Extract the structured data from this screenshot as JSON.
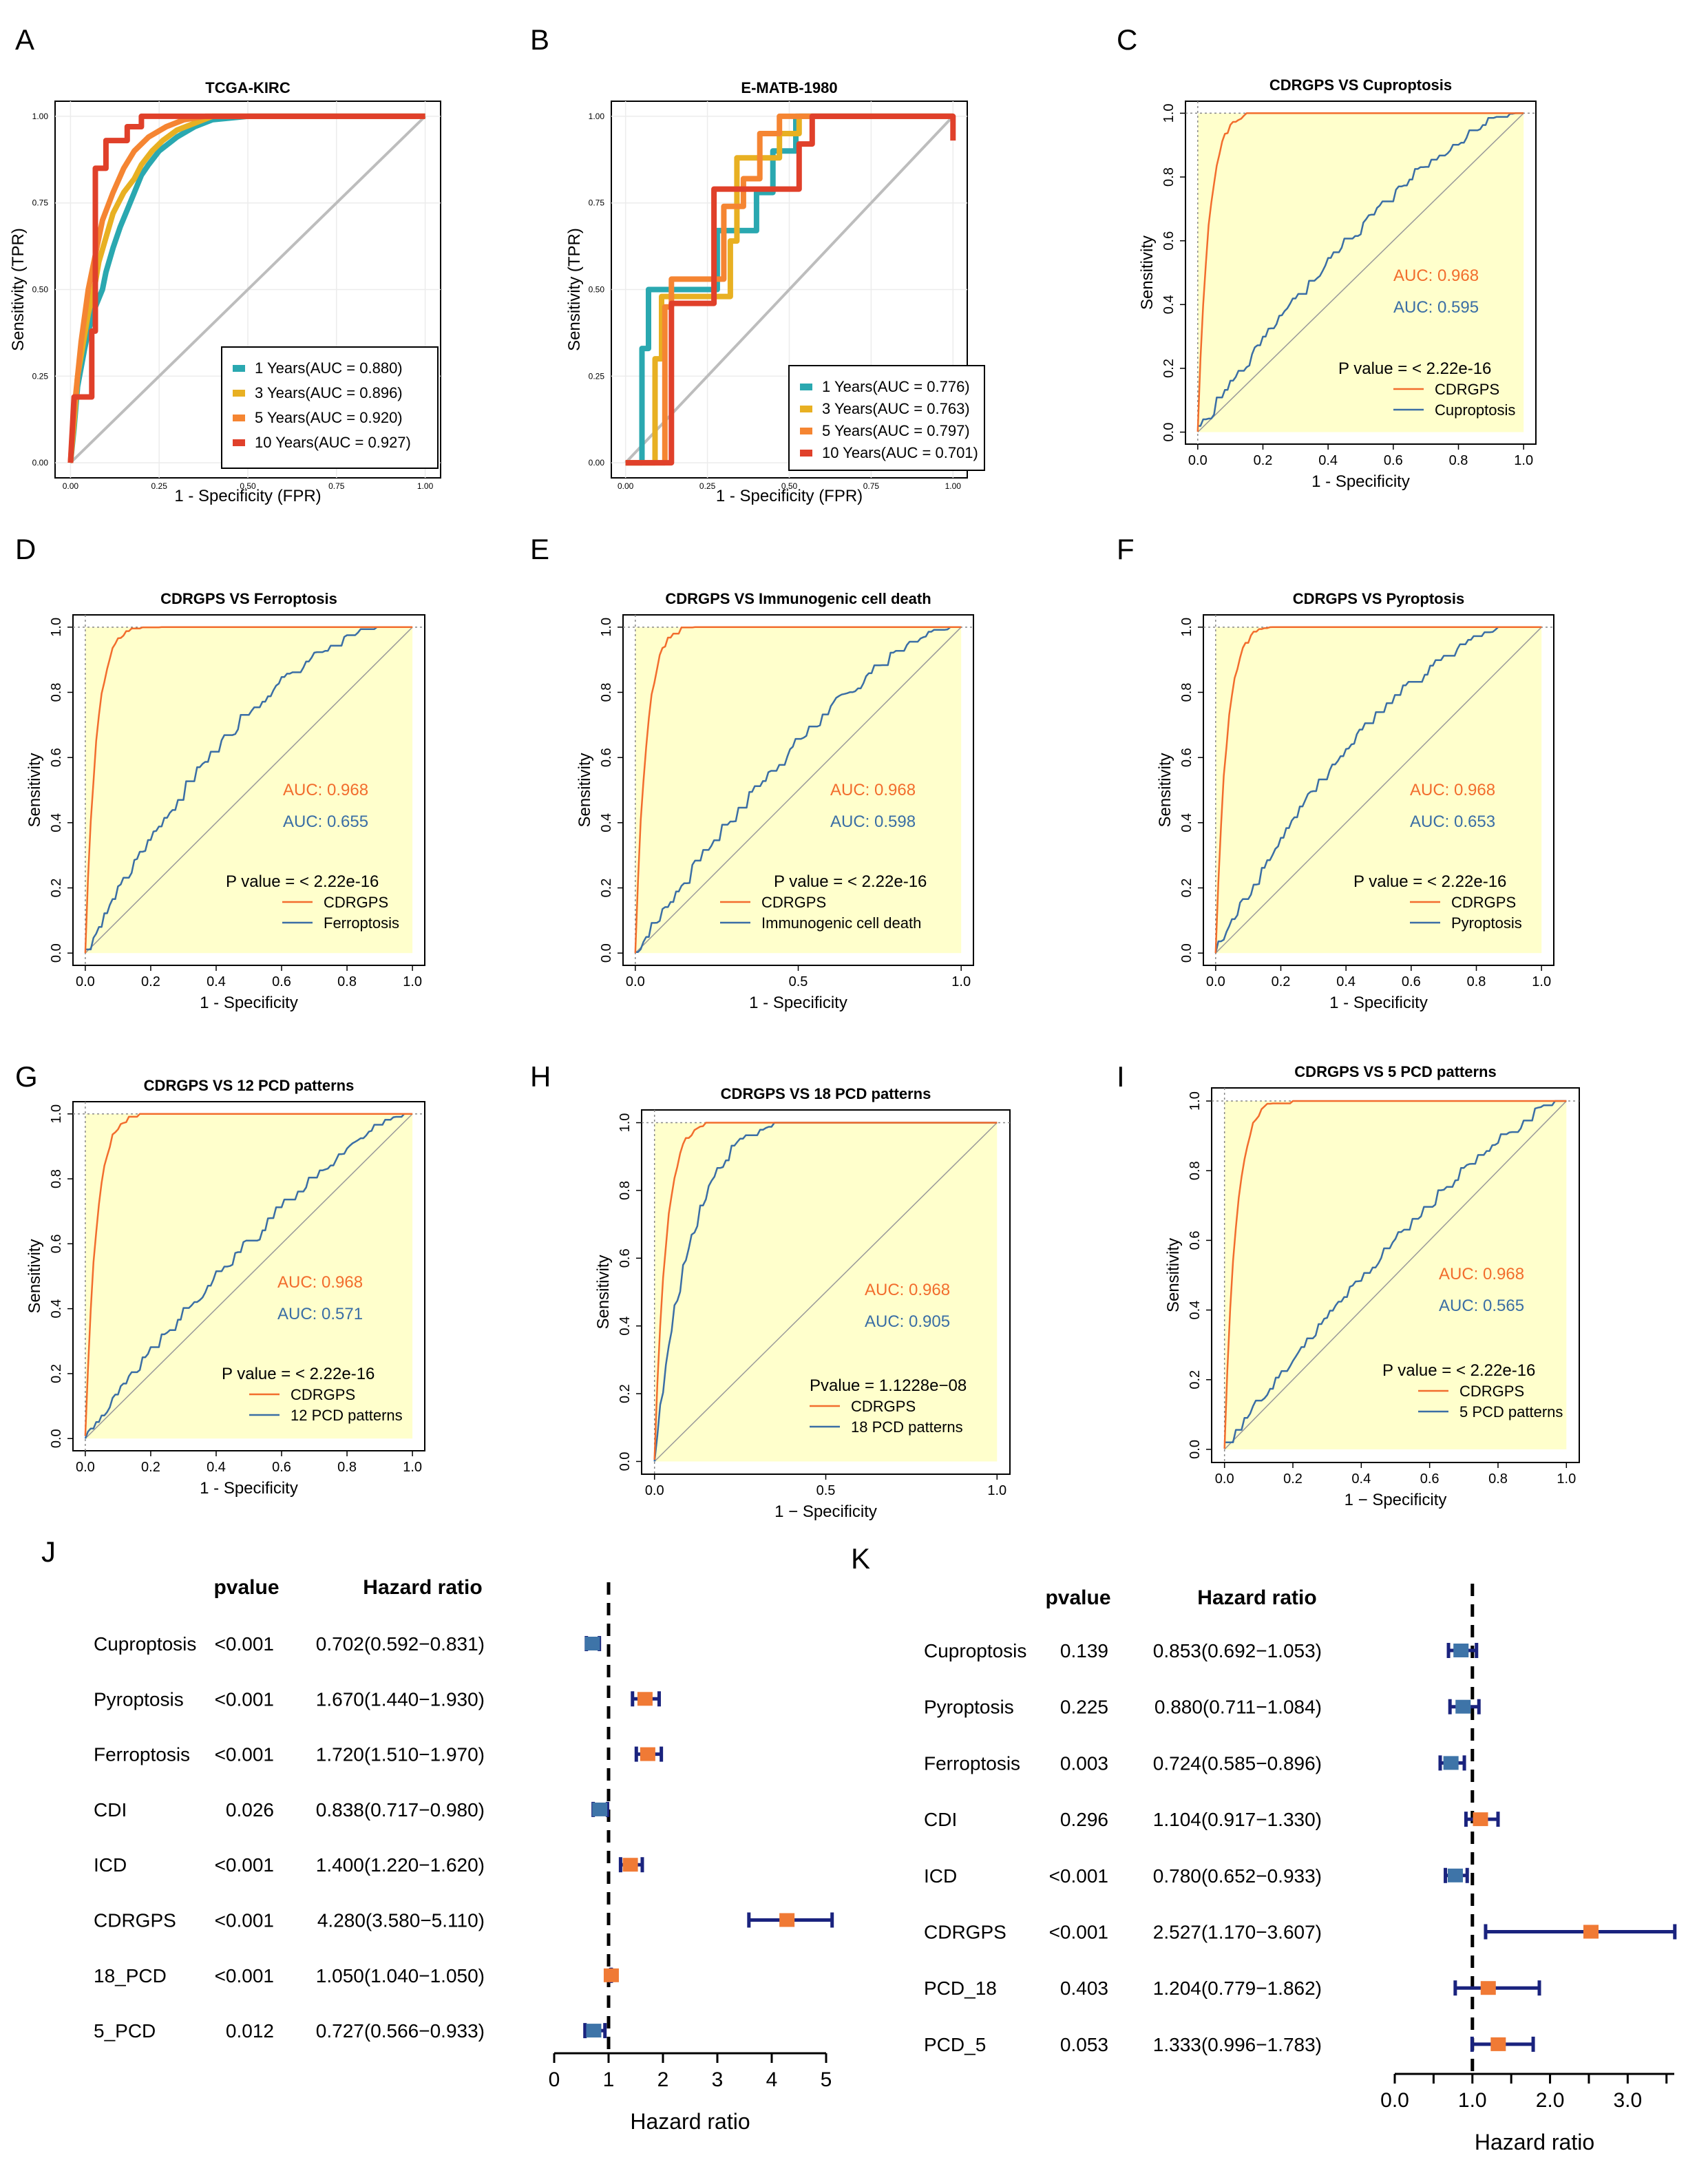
{
  "panel_letters": [
    "A",
    "B",
    "C",
    "D",
    "E",
    "F",
    "G",
    "H",
    "I",
    "J",
    "K"
  ],
  "colors": {
    "y1": "#2AA8B0",
    "y3": "#E8B022",
    "y5": "#F58532",
    "y10": "#E0402A",
    "orange": "#F26D2D",
    "blue": "#3A6EA5",
    "fill": "#FFFFCC",
    "forest_blue": "#3E74A8",
    "forest_orange": "#F07A35",
    "whisker": "#1A237E"
  },
  "chart_data": [
    {
      "panel": "A",
      "type": "line",
      "title": "TCGA-KIRC",
      "xlabel": "1 - Specificity (FPR)",
      "ylabel": "Sensitivity (TPR)",
      "xlim": [
        0,
        1
      ],
      "ylim": [
        0,
        1
      ],
      "xticks": [
        "0.00",
        "0.25",
        "0.50",
        "0.75",
        "1.00"
      ],
      "yticks": [
        "0.00",
        "0.25",
        "0.50",
        "0.75",
        "1.00"
      ],
      "legend_position": "bottom-right",
      "series": [
        {
          "name": "1 Years(AUC = 0.880)",
          "color": "#2AA8B0",
          "x": [
            0,
            0.01,
            0.02,
            0.04,
            0.05,
            0.07,
            0.09,
            0.1,
            0.12,
            0.14,
            0.16,
            0.18,
            0.2,
            0.22,
            0.25,
            0.3,
            0.35,
            0.4,
            0.5,
            1
          ],
          "y": [
            0,
            0.1,
            0.22,
            0.33,
            0.38,
            0.45,
            0.5,
            0.55,
            0.62,
            0.68,
            0.73,
            0.78,
            0.83,
            0.86,
            0.9,
            0.94,
            0.97,
            0.99,
            1,
            1
          ]
        },
        {
          "name": "3 Years(AUC = 0.896)",
          "color": "#E8B022",
          "x": [
            0,
            0.01,
            0.02,
            0.04,
            0.05,
            0.07,
            0.08,
            0.1,
            0.12,
            0.15,
            0.18,
            0.2,
            0.23,
            0.26,
            0.3,
            0.35,
            0.4,
            1
          ],
          "y": [
            0,
            0.12,
            0.25,
            0.37,
            0.43,
            0.52,
            0.58,
            0.65,
            0.72,
            0.78,
            0.82,
            0.86,
            0.9,
            0.93,
            0.96,
            0.98,
            1,
            1
          ]
        },
        {
          "name": "5 Years(AUC = 0.920)",
          "color": "#F58532",
          "x": [
            0,
            0.01,
            0.03,
            0.05,
            0.07,
            0.09,
            0.12,
            0.15,
            0.18,
            0.22,
            0.27,
            0.32,
            0.38,
            1
          ],
          "y": [
            0,
            0.15,
            0.35,
            0.5,
            0.6,
            0.7,
            0.78,
            0.85,
            0.9,
            0.94,
            0.97,
            0.99,
            1,
            1
          ]
        },
        {
          "name": "10 Years(AUC = 0.927)",
          "color": "#E0402A",
          "x": [
            0,
            0.01,
            0.06,
            0.06,
            0.07,
            0.07,
            0.1,
            0.1,
            0.16,
            0.16,
            0.2,
            0.2,
            0.35,
            0.35,
            1
          ],
          "y": [
            0,
            0.19,
            0.19,
            0.38,
            0.38,
            0.85,
            0.85,
            0.93,
            0.93,
            0.97,
            0.97,
            1,
            1,
            1,
            1
          ]
        }
      ]
    },
    {
      "panel": "B",
      "type": "line",
      "title": "E-MATB-1980",
      "xlabel": "1 - Specificity (FPR)",
      "ylabel": "Sensitivity (TPR)",
      "xlim": [
        0,
        1
      ],
      "ylim": [
        0,
        1
      ],
      "xticks": [
        "0.00",
        "0.25",
        "0.50",
        "0.75",
        "1.00"
      ],
      "yticks": [
        "0.00",
        "0.25",
        "0.50",
        "0.75",
        "1.00"
      ],
      "legend_position": "bottom-right",
      "series": [
        {
          "name": "1 Years(AUC = 0.776)",
          "color": "#2AA8B0",
          "x": [
            0,
            0.05,
            0.05,
            0.07,
            0.07,
            0.28,
            0.28,
            0.4,
            0.4,
            0.45,
            0.45,
            0.52,
            0.52,
            1
          ],
          "y": [
            0,
            0,
            0.33,
            0.33,
            0.5,
            0.5,
            0.67,
            0.67,
            0.78,
            0.78,
            0.9,
            0.9,
            1,
            1
          ]
        },
        {
          "name": "3 Years(AUC = 0.763)",
          "color": "#E8B022",
          "x": [
            0,
            0.09,
            0.09,
            0.11,
            0.11,
            0.32,
            0.32,
            0.34,
            0.34,
            0.47,
            0.47,
            0.53,
            0.53,
            1
          ],
          "y": [
            0,
            0,
            0.3,
            0.3,
            0.48,
            0.48,
            0.64,
            0.64,
            0.88,
            0.88,
            0.95,
            0.95,
            1,
            1
          ]
        },
        {
          "name": "5 Years(AUC = 0.797)",
          "color": "#F58532",
          "x": [
            0,
            0.12,
            0.12,
            0.14,
            0.14,
            0.3,
            0.3,
            0.36,
            0.36,
            0.41,
            0.41,
            0.47,
            0.47,
            1
          ],
          "y": [
            0,
            0,
            0.45,
            0.45,
            0.53,
            0.53,
            0.74,
            0.74,
            0.82,
            0.82,
            0.95,
            0.95,
            1,
            1
          ]
        },
        {
          "name": "10 Years(AUC = 0.701)",
          "color": "#E0402A",
          "x": [
            0,
            0.14,
            0.14,
            0.27,
            0.27,
            0.53,
            0.53,
            0.57,
            0.57,
            1,
            1
          ],
          "y": [
            0,
            0,
            0.46,
            0.46,
            0.79,
            0.79,
            0.92,
            0.92,
            1,
            1,
            0.93
          ]
        }
      ]
    },
    {
      "panel": "C",
      "type": "line",
      "title": "CDRGPS VS Cuproptosis",
      "xlabel": "1 - Specificity",
      "ylabel": "Sensitivity",
      "xticks": [
        "0.0",
        "0.2",
        "0.4",
        "0.6",
        "0.8",
        "1.0"
      ],
      "yticks": [
        "0.0",
        "0.2",
        "0.4",
        "0.6",
        "0.8",
        "1.0"
      ],
      "auc_labels": [
        "AUC: 0.968",
        "AUC: 0.595"
      ],
      "pvalue": "P value = < 2.22e-16",
      "series": [
        {
          "name": "CDRGPS",
          "auc": 0.968
        },
        {
          "name": "Cuproptosis",
          "auc": 0.595
        }
      ]
    },
    {
      "panel": "D",
      "type": "line",
      "title": "CDRGPS VS Ferroptosis",
      "xlabel": "1 - Specificity",
      "ylabel": "Sensitivity",
      "xticks": [
        "0.0",
        "0.2",
        "0.4",
        "0.6",
        "0.8",
        "1.0"
      ],
      "yticks": [
        "0.0",
        "0.2",
        "0.4",
        "0.6",
        "0.8",
        "1.0"
      ],
      "auc_labels": [
        "AUC: 0.968",
        "AUC: 0.655"
      ],
      "pvalue": "P value = < 2.22e-16",
      "series": [
        {
          "name": "CDRGPS",
          "auc": 0.968
        },
        {
          "name": "Ferroptosis",
          "auc": 0.655
        }
      ]
    },
    {
      "panel": "E",
      "type": "line",
      "title": "CDRGPS VS Immunogenic cell death",
      "xlabel": "1 - Specificity",
      "ylabel": "Sensitivity",
      "xticks": [
        "0.0",
        "0.5",
        "1.0"
      ],
      "yticks": [
        "0.0",
        "0.2",
        "0.4",
        "0.6",
        "0.8",
        "1.0"
      ],
      "auc_labels": [
        "AUC: 0.968",
        "AUC: 0.598"
      ],
      "pvalue": "P value = < 2.22e-16",
      "series": [
        {
          "name": "CDRGPS",
          "auc": 0.968
        },
        {
          "name": "Immunogenic cell death",
          "auc": 0.598
        }
      ]
    },
    {
      "panel": "F",
      "type": "line",
      "title": "CDRGPS VS Pyroptosis",
      "xlabel": "1 - Specificity",
      "ylabel": "Sensitivity",
      "xticks": [
        "0.0",
        "0.2",
        "0.4",
        "0.6",
        "0.8",
        "1.0"
      ],
      "yticks": [
        "0.0",
        "0.2",
        "0.4",
        "0.6",
        "0.8",
        "1.0"
      ],
      "auc_labels": [
        "AUC: 0.968",
        "AUC: 0.653"
      ],
      "pvalue": "P value = < 2.22e-16",
      "series": [
        {
          "name": "CDRGPS",
          "auc": 0.968
        },
        {
          "name": "Pyroptosis",
          "auc": 0.653
        }
      ]
    },
    {
      "panel": "G",
      "type": "line",
      "title": "CDRGPS VS 12 PCD patterns",
      "xlabel": "1 - Specificity",
      "ylabel": "Sensitivity",
      "xticks": [
        "0.0",
        "0.2",
        "0.4",
        "0.6",
        "0.8",
        "1.0"
      ],
      "yticks": [
        "0.0",
        "0.2",
        "0.4",
        "0.6",
        "0.8",
        "1.0"
      ],
      "auc_labels": [
        "AUC: 0.968",
        "AUC: 0.571"
      ],
      "pvalue": "P value = < 2.22e-16",
      "series": [
        {
          "name": "CDRGPS",
          "auc": 0.968
        },
        {
          "name": "12 PCD patterns",
          "auc": 0.571
        }
      ]
    },
    {
      "panel": "H",
      "type": "line",
      "title": "CDRGPS VS 18 PCD patterns",
      "xlabel": "1 − Specificity",
      "ylabel": "Sensitivity",
      "xticks": [
        "0.0",
        "0.5",
        "1.0"
      ],
      "yticks": [
        "0.0",
        "0.2",
        "0.4",
        "0.6",
        "0.8",
        "1.0"
      ],
      "auc_labels": [
        "AUC: 0.968",
        "AUC: 0.905"
      ],
      "pvalue": "Pvalue = 1.1228e−08",
      "series": [
        {
          "name": "CDRGPS",
          "auc": 0.968
        },
        {
          "name": "18 PCD patterns",
          "auc": 0.905
        }
      ]
    },
    {
      "panel": "I",
      "type": "line",
      "title": "CDRGPS VS 5 PCD patterns",
      "xlabel": "1 − Specificity",
      "ylabel": "Sensitivity",
      "xticks": [
        "0.0",
        "0.2",
        "0.4",
        "0.6",
        "0.8",
        "1.0"
      ],
      "yticks": [
        "0.0",
        "0.2",
        "0.4",
        "0.6",
        "0.8",
        "1.0"
      ],
      "auc_labels": [
        "AUC: 0.968",
        "AUC: 0.565"
      ],
      "pvalue": "P value = < 2.22e-16",
      "series": [
        {
          "name": "CDRGPS",
          "auc": 0.968
        },
        {
          "name": "5 PCD patterns",
          "auc": 0.565
        }
      ]
    },
    {
      "panel": "J",
      "type": "forest",
      "xlabel": "Hazard ratio",
      "xlim": [
        0,
        5
      ],
      "xticks": [
        "0",
        "1",
        "2",
        "3",
        "4",
        "5"
      ],
      "col_pvalue": "pvalue",
      "col_hr": "Hazard ratio",
      "ref": 1,
      "rows": [
        {
          "label": "Cuproptosis",
          "pvalue": "<0.001",
          "hr": "0.702(0.592−0.831)",
          "est": 0.702,
          "lo": 0.592,
          "hi": 0.831
        },
        {
          "label": "Pyroptosis",
          "pvalue": "<0.001",
          "hr": "1.670(1.440−1.930)",
          "est": 1.67,
          "lo": 1.44,
          "hi": 1.93
        },
        {
          "label": "Ferroptosis",
          "pvalue": "<0.001",
          "hr": "1.720(1.510−1.970)",
          "est": 1.72,
          "lo": 1.51,
          "hi": 1.97
        },
        {
          "label": "CDI",
          "pvalue": "0.026",
          "hr": "0.838(0.717−0.980)",
          "est": 0.838,
          "lo": 0.717,
          "hi": 0.98
        },
        {
          "label": "ICD",
          "pvalue": "<0.001",
          "hr": "1.400(1.220−1.620)",
          "est": 1.4,
          "lo": 1.22,
          "hi": 1.62
        },
        {
          "label": "CDRGPS",
          "pvalue": "<0.001",
          "hr": "4.280(3.580−5.110)",
          "est": 4.28,
          "lo": 3.58,
          "hi": 5.11
        },
        {
          "label": "18_PCD",
          "pvalue": "<0.001",
          "hr": "1.050(1.040−1.050)",
          "est": 1.05,
          "lo": 1.04,
          "hi": 1.05
        },
        {
          "label": "5_PCD",
          "pvalue": "0.012",
          "hr": "0.727(0.566−0.933)",
          "est": 0.727,
          "lo": 0.566,
          "hi": 0.933
        }
      ]
    },
    {
      "panel": "K",
      "type": "forest",
      "xlabel": "Hazard ratio",
      "xlim": [
        0,
        3.6
      ],
      "xticks": [
        "0.0",
        "1.0",
        "2.0",
        "3.0"
      ],
      "col_pvalue": "pvalue",
      "col_hr": "Hazard ratio",
      "ref": 1,
      "rows": [
        {
          "label": "Cuproptosis",
          "pvalue": "0.139",
          "hr": "0.853(0.692−1.053)",
          "est": 0.853,
          "lo": 0.692,
          "hi": 1.053
        },
        {
          "label": "Pyroptosis",
          "pvalue": "0.225",
          "hr": "0.880(0.711−1.084)",
          "est": 0.88,
          "lo": 0.711,
          "hi": 1.084
        },
        {
          "label": "Ferroptosis",
          "pvalue": "0.003",
          "hr": "0.724(0.585−0.896)",
          "est": 0.724,
          "lo": 0.585,
          "hi": 0.896
        },
        {
          "label": "CDI",
          "pvalue": "0.296",
          "hr": "1.104(0.917−1.330)",
          "est": 1.104,
          "lo": 0.917,
          "hi": 1.33
        },
        {
          "label": "ICD",
          "pvalue": "<0.001",
          "hr": "0.780(0.652−0.933)",
          "est": 0.78,
          "lo": 0.652,
          "hi": 0.933
        },
        {
          "label": "CDRGPS",
          "pvalue": "<0.001",
          "hr": "2.527(1.170−3.607)",
          "est": 2.527,
          "lo": 1.17,
          "hi": 3.607
        },
        {
          "label": "PCD_18",
          "pvalue": "0.403",
          "hr": "1.204(0.779−1.862)",
          "est": 1.204,
          "lo": 0.779,
          "hi": 1.862
        },
        {
          "label": "PCD_5",
          "pvalue": "0.053",
          "hr": "1.333(0.996−1.783)",
          "est": 1.333,
          "lo": 0.996,
          "hi": 1.783
        }
      ]
    }
  ]
}
